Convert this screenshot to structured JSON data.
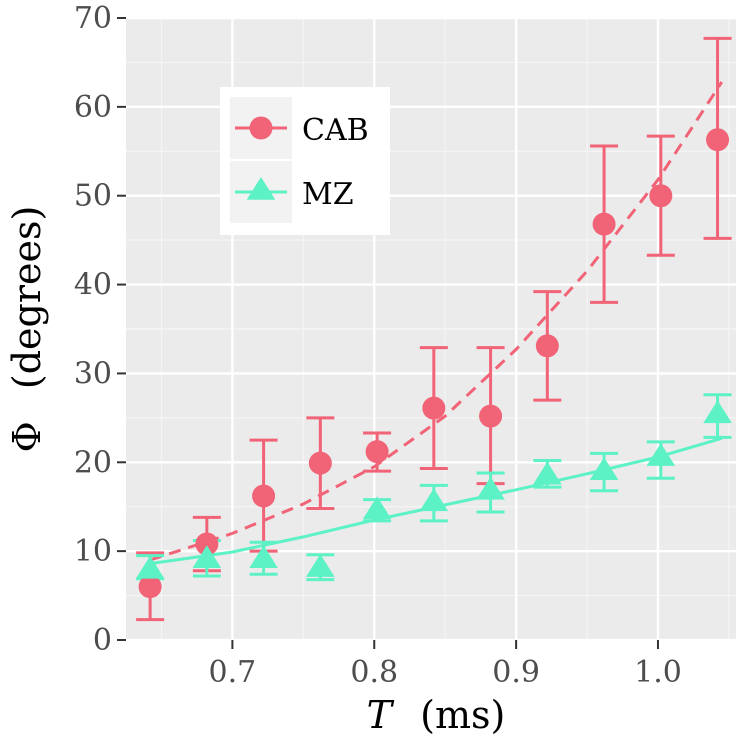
{
  "chart_data": {
    "type": "scatter",
    "xlabel_var": "T",
    "xlabel_unit": "(ms)",
    "ylabel_var": "Φ",
    "ylabel_unit": "(degrees)",
    "xlim": [
      0.625,
      1.055
    ],
    "ylim": [
      0,
      70
    ],
    "xticks": [
      0.7,
      0.8,
      0.9,
      1.0
    ],
    "xtick_labels": [
      "0.7",
      "0.8",
      "0.9",
      "1.0"
    ],
    "yticks": [
      0,
      10,
      20,
      30,
      40,
      50,
      60,
      70
    ],
    "ytick_labels": [
      "0",
      "10",
      "20",
      "30",
      "40",
      "50",
      "60",
      "70"
    ],
    "grid": true,
    "panel_color": "#ebebeb",
    "legend_position": "top-left",
    "series": [
      {
        "name": "CAB",
        "marker": "circle",
        "color": "#f16376",
        "line_style": "dashed",
        "x": [
          0.642,
          0.682,
          0.722,
          0.762,
          0.802,
          0.842,
          0.882,
          0.922,
          0.962,
          1.002,
          1.042
        ],
        "y": [
          6.0,
          10.8,
          16.2,
          19.9,
          21.2,
          26.1,
          25.2,
          33.1,
          46.8,
          50.0,
          56.3
        ],
        "err_low": [
          2.3,
          7.8,
          10.0,
          14.8,
          19.0,
          19.3,
          17.6,
          27.0,
          38.0,
          43.3,
          45.2
        ],
        "err_high": [
          9.8,
          13.8,
          22.5,
          25.0,
          23.3,
          32.9,
          32.9,
          39.2,
          55.6,
          56.7,
          67.7
        ],
        "fit": [
          [
            0.642,
            9.0
          ],
          [
            0.7,
            12.0
          ],
          [
            0.75,
            15.3
          ],
          [
            0.8,
            19.5
          ],
          [
            0.85,
            25.2
          ],
          [
            0.9,
            32.7
          ],
          [
            0.95,
            41.5
          ],
          [
            1.0,
            51.8
          ],
          [
            1.045,
            62.8
          ]
        ]
      },
      {
        "name": "MZ",
        "marker": "triangle",
        "color": "#5df2c6",
        "line_style": "solid",
        "x": [
          0.642,
          0.682,
          0.722,
          0.762,
          0.802,
          0.842,
          0.882,
          0.922,
          0.962,
          1.002,
          1.042
        ],
        "y": [
          8.0,
          9.2,
          9.2,
          8.2,
          14.7,
          15.6,
          16.9,
          18.6,
          19.1,
          20.7,
          25.5
        ],
        "err_low": [
          6.9,
          7.2,
          7.4,
          6.8,
          13.4,
          13.4,
          14.4,
          17.2,
          16.8,
          18.2,
          22.8
        ],
        "err_high": [
          9.5,
          11.2,
          11.0,
          9.6,
          15.8,
          17.4,
          18.8,
          20.2,
          21.0,
          22.3,
          27.6
        ],
        "fit": [
          [
            0.642,
            8.6
          ],
          [
            0.7,
            9.9
          ],
          [
            0.75,
            11.6
          ],
          [
            0.8,
            13.5
          ],
          [
            0.85,
            15.2
          ],
          [
            0.9,
            16.9
          ],
          [
            0.95,
            18.7
          ],
          [
            1.0,
            20.6
          ],
          [
            1.045,
            22.7
          ]
        ]
      }
    ]
  }
}
